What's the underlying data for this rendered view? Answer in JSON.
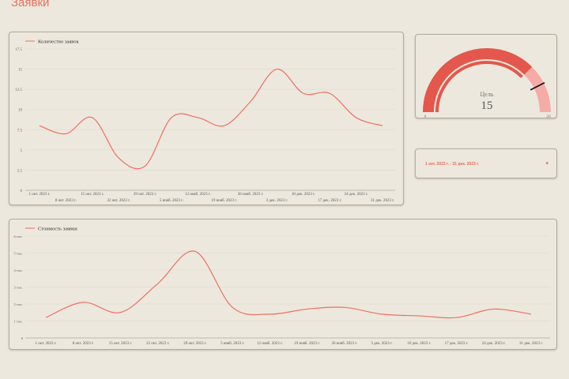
{
  "page": {
    "title": "Заявки"
  },
  "colors": {
    "accent": "#ef6f60",
    "gauge_main": "#e4574c",
    "gauge_rest": "#f5aca6",
    "background": "#ece8dd",
    "border": "#b4ab9c"
  },
  "gauge": {
    "label": "Цель",
    "value_text": "15",
    "value": 15,
    "min": 0,
    "max": 20,
    "min_label": "0",
    "max_label": "20",
    "target": 17
  },
  "date_filter": {
    "label": "1 окт. 2023 г. - 31 дек. 2023 г.",
    "arrow_icon": "dropdown-arrow-icon"
  },
  "chart_data": [
    {
      "type": "line",
      "series": [
        {
          "name": "Количество заявок",
          "values": [
            8,
            7,
            9,
            4,
            3,
            9,
            9,
            8,
            11,
            15,
            12,
            12,
            9,
            8
          ]
        }
      ],
      "x_labels_row1": [
        "1 окт. 2023 г.",
        "15 окт. 2023 г.",
        "29 окт. 2023 г.",
        "12 нояб. 2023 г.",
        "26 нояб. 2023 г.",
        "10 дек. 2023 г.",
        "24 дек. 2023 г."
      ],
      "x_labels_row2": [
        "8 окт. 2023 г.",
        "22 окт. 2023 г.",
        "5 нояб. 2023 г.",
        "19 нояб. 2023 г.",
        "3 дек. 2023 г.",
        "17 дек. 2023 г.",
        "31 дек. 2023 г."
      ],
      "y_ticks": [
        "0",
        "2.5",
        "5",
        "7.5",
        "10",
        "12.5",
        "15",
        "17.5"
      ],
      "ylim": [
        0,
        17.5
      ],
      "legend": "top-left",
      "grid": true
    },
    {
      "type": "line",
      "series": [
        {
          "name": "Стоимость заявки",
          "values": [
            1200,
            2100,
            1500,
            3200,
            5100,
            1800,
            1400,
            1700,
            1800,
            1400,
            1300,
            1200,
            1700,
            1400
          ]
        }
      ],
      "x_labels": [
        "1 окт. 2023 г.",
        "8 окт. 2023 г.",
        "15 окт. 2023 г.",
        "22 окт. 2023 г.",
        "29 окт. 2023 г.",
        "5 нояб. 2023 г.",
        "12 нояб. 2023 г.",
        "19 нояб. 2023 г.",
        "26 нояб. 2023 г.",
        "3 дек. 2023 г.",
        "10 дек. 2023 г.",
        "17 дек. 2023 г.",
        "24 дек. 2023 г.",
        "31 дек. 2023 г."
      ],
      "y_ticks": [
        "0",
        "1 тыс.",
        "2 тыс.",
        "3 тыс.",
        "4 тыс.",
        "5 тыс.",
        "6 тыс."
      ],
      "ylim": [
        0,
        6000
      ],
      "legend": "top-left",
      "grid": true
    }
  ]
}
